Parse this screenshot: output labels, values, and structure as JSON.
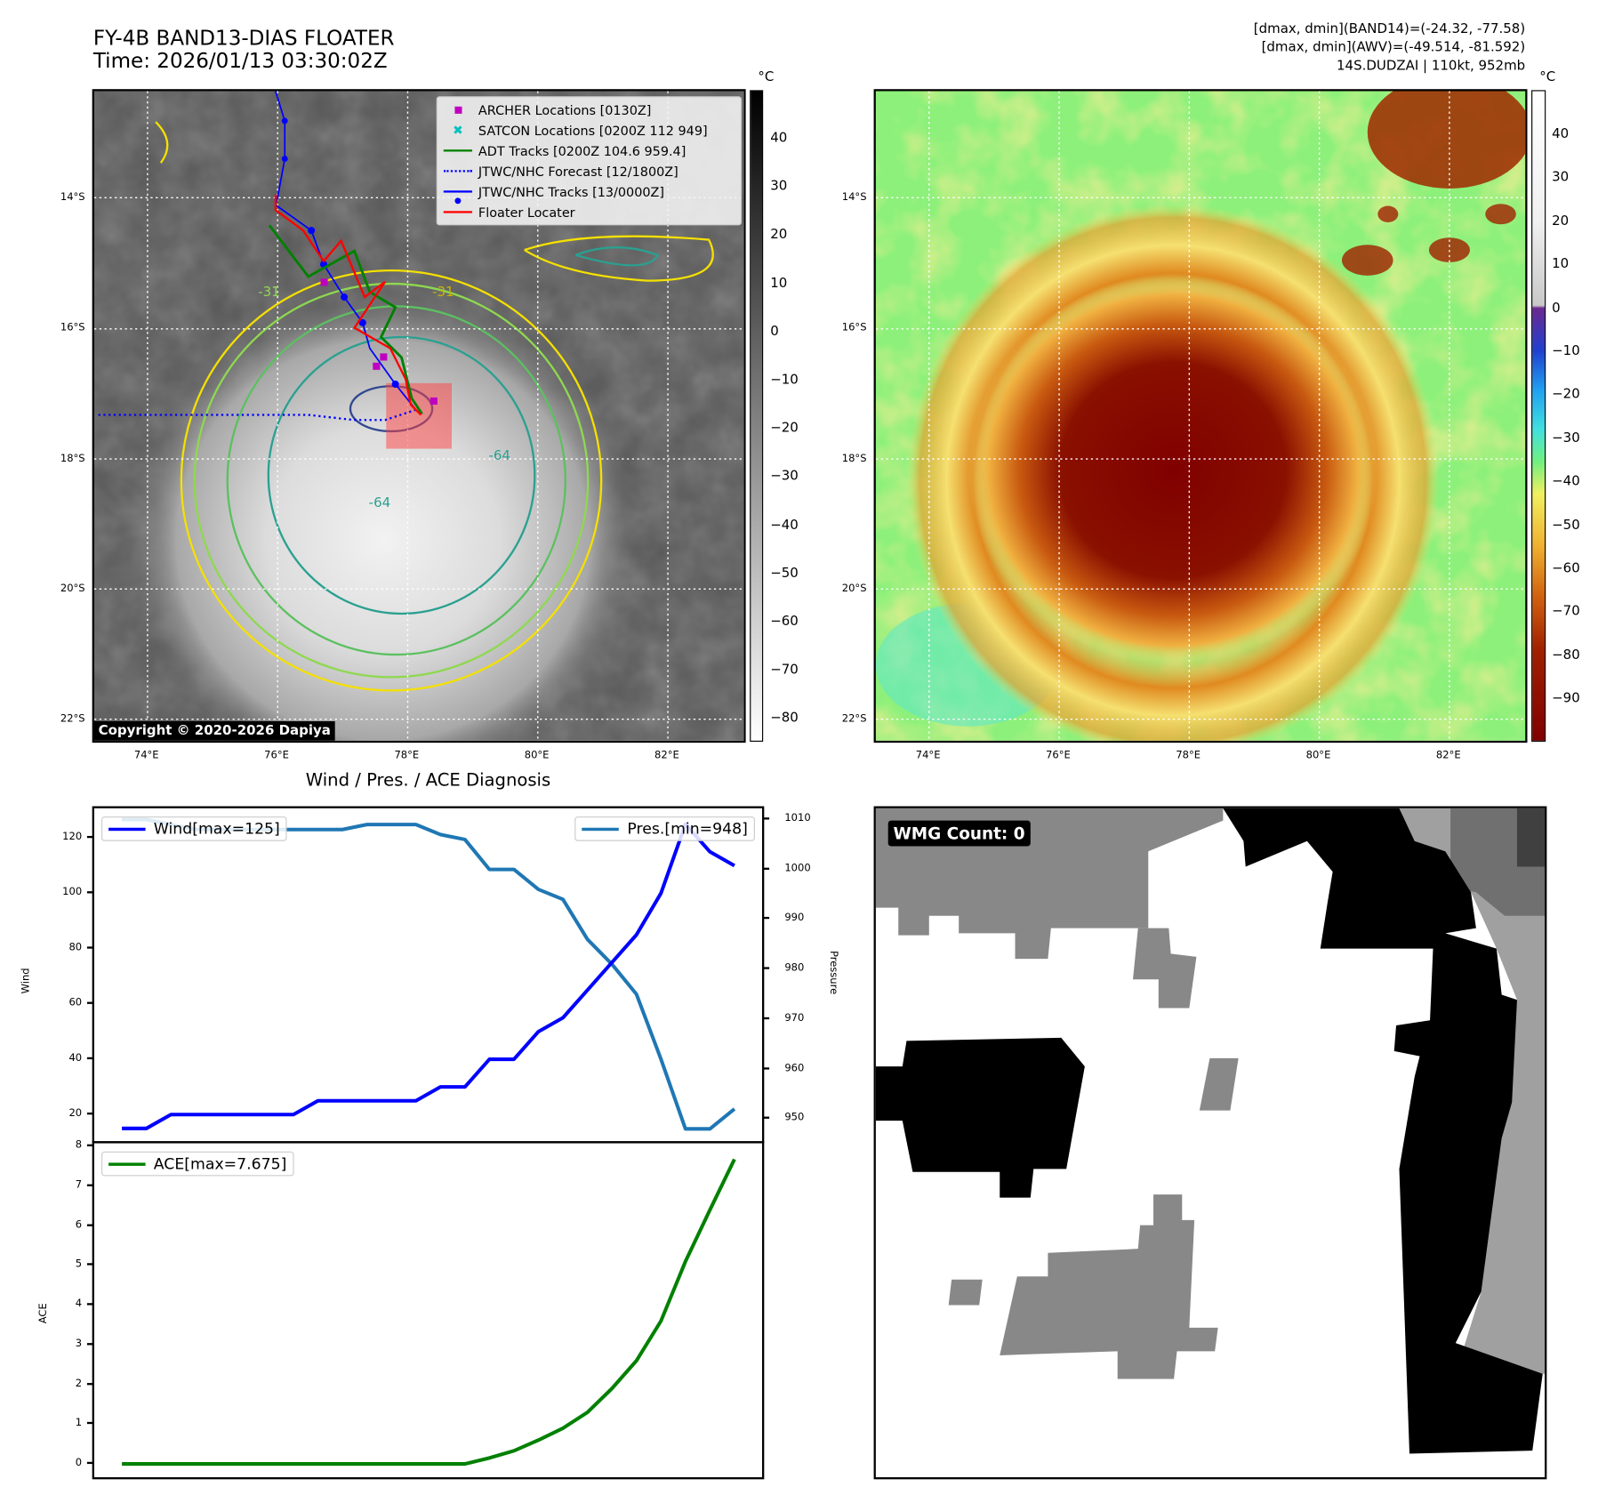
{
  "header": {
    "title_line1": "FY-4B BAND13-DIAS FLOATER",
    "title_line2": "Time: 2026/01/13 03:30:02Z",
    "info_line1": "[dmax, dmin](BAND14)=(-24.32, -77.58)",
    "info_line2": "[dmax, dmin](AWV)=(-49.514, -81.592)",
    "info_line3": "14S.DUDZAI | 110kt, 952mb"
  },
  "map": {
    "lon_ticks": [
      "74°E",
      "76°E",
      "78°E",
      "80°E",
      "82°E"
    ],
    "lat_ticks": [
      "14°S",
      "16°S",
      "18°S",
      "20°S",
      "22°S"
    ],
    "contour_labels": [
      "-31",
      "-64",
      "-64",
      "-31"
    ],
    "copyright": "Copyright © 2020-2026 Dapiya",
    "legend": [
      {
        "label": "ARCHER Locations [0130Z]",
        "color": "#c000c0"
      },
      {
        "label": "SATCON Locations [0200Z 112 949]",
        "color": "#00c0c0"
      },
      {
        "label": "ADT Tracks [0200Z 104.6 959.4]",
        "color": "#008000"
      },
      {
        "label": "JTWC/NHC Forecast [12/1800Z]",
        "color": "#0000ff"
      },
      {
        "label": "JTWC/NHC Tracks [13/0000Z]",
        "color": "#0000ff"
      },
      {
        "label": "Floater Locater",
        "color": "#ff0000"
      }
    ]
  },
  "colorbar1": {
    "unit": "°C",
    "ticks": [
      "40",
      "30",
      "20",
      "10",
      "0",
      "−10",
      "−20",
      "−30",
      "−40",
      "−50",
      "−60",
      "−70",
      "−80"
    ]
  },
  "colorbar2": {
    "unit": "°C",
    "ticks": [
      "40",
      "30",
      "20",
      "10",
      "0",
      "−10",
      "−20",
      "−30",
      "−40",
      "−50",
      "−60",
      "−70",
      "−80",
      "−90"
    ]
  },
  "wmg": {
    "label": "WMG Count: 0"
  },
  "chart_data": [
    {
      "type": "line",
      "title": "Wind / Pres. / ACE Diagnosis",
      "ylabel": "Wind",
      "y2label": "Pressure",
      "ylim": [
        10,
        130
      ],
      "y2lim": [
        945,
        1012
      ],
      "yticks": [
        20,
        40,
        60,
        80,
        100,
        120
      ],
      "y2ticks": [
        950,
        960,
        970,
        980,
        990,
        1000,
        1010
      ],
      "series": [
        {
          "name": "Wind[max=125]",
          "color": "#0000ff",
          "axis": "left",
          "values": [
            15,
            15,
            20,
            20,
            20,
            20,
            20,
            20,
            25,
            25,
            25,
            25,
            25,
            30,
            30,
            40,
            40,
            50,
            55,
            65,
            75,
            85,
            100,
            125,
            115,
            110
          ]
        },
        {
          "name": "Pres.[min=948]",
          "color": "#1f77b4",
          "axis": "right",
          "values": [
            1010,
            1010,
            1009,
            1008,
            1008,
            1008,
            1008,
            1008,
            1008,
            1008,
            1009,
            1009,
            1009,
            1007,
            1006,
            1000,
            1000,
            996,
            994,
            986,
            981,
            975,
            962,
            948,
            948,
            952
          ]
        }
      ]
    },
    {
      "type": "line",
      "ylabel": "ACE",
      "ylim": [
        -0.4,
        8
      ],
      "yticks": [
        0,
        1,
        2,
        3,
        4,
        5,
        6,
        7,
        8
      ],
      "series": [
        {
          "name": "ACE[max=7.675]",
          "color": "#008000",
          "values": [
            0,
            0,
            0,
            0,
            0,
            0,
            0,
            0,
            0,
            0,
            0,
            0,
            0,
            0,
            0,
            0.15,
            0.33,
            0.6,
            0.9,
            1.3,
            1.9,
            2.6,
            3.6,
            5.1,
            6.4,
            7.675
          ]
        }
      ]
    }
  ]
}
